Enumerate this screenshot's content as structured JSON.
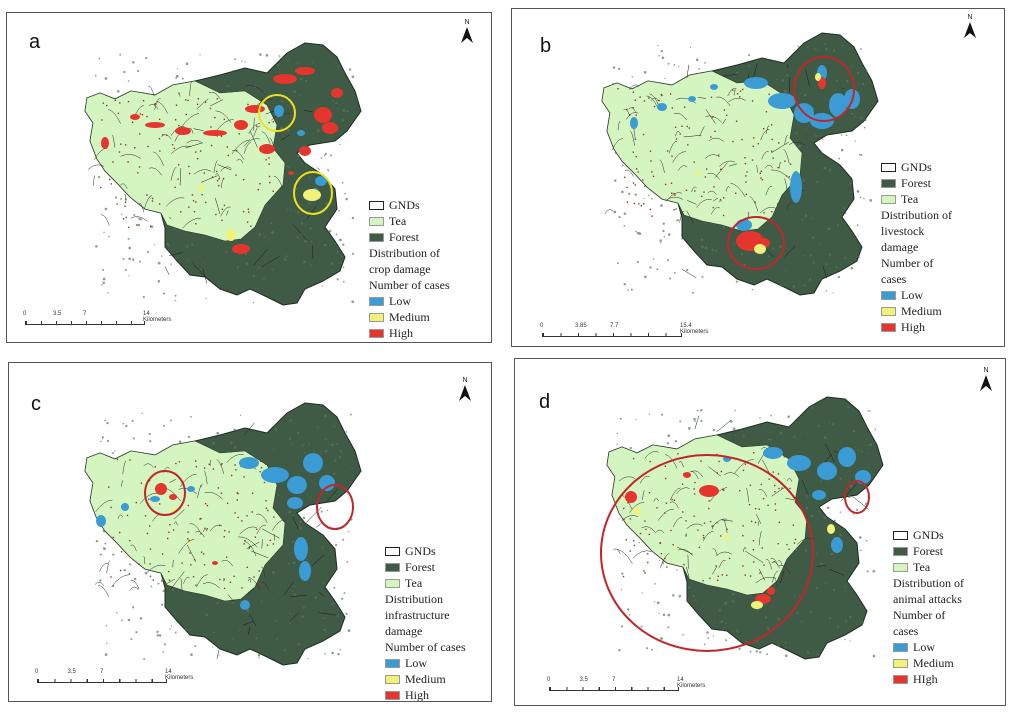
{
  "north_label": "N",
  "colors": {
    "forest": "#3f5a45",
    "tea": "#d5f5c0",
    "low": "#3a9bd5",
    "medium": "#f2f27a",
    "high": "#e5352c",
    "gnd_border": "#222222",
    "circle_yellow": "#f0e020",
    "circle_red": "#c0262a"
  },
  "panels": [
    {
      "id": "a",
      "label": "a",
      "legend": [
        "GNDs",
        "Tea",
        "Forest",
        "Distribution of crop damage",
        "Number of cases",
        "Low",
        "Medium",
        "High"
      ],
      "legend_items": [
        {
          "text": "GNDs",
          "swatch": "gnd"
        },
        {
          "text": "Tea",
          "swatch": "tea"
        },
        {
          "text": "Forest",
          "swatch": "forest"
        },
        {
          "text": "Distribution of",
          "swatch": null
        },
        {
          "text": "crop damage",
          "swatch": null
        },
        {
          "text": "Number of cases",
          "swatch": null
        },
        {
          "text": "Low",
          "swatch": "low"
        },
        {
          "text": "Medium",
          "swatch": "medium"
        },
        {
          "text": "High",
          "swatch": "high"
        }
      ],
      "scale_ticks": [
        "0",
        "3.5",
        "7",
        "14 Kilometers"
      ],
      "highlight_circles": 2,
      "circle_color": "yellow"
    },
    {
      "id": "b",
      "label": "b",
      "legend_items": [
        {
          "text": "GNDs",
          "swatch": "gnd"
        },
        {
          "text": "Forest",
          "swatch": "forest"
        },
        {
          "text": "Tea",
          "swatch": "tea"
        },
        {
          "text": "Distribution of",
          "swatch": null
        },
        {
          "text": "livestock",
          "swatch": null
        },
        {
          "text": "damage",
          "swatch": null
        },
        {
          "text": "Number of",
          "swatch": null
        },
        {
          "text": "cases",
          "swatch": null
        },
        {
          "text": "Low",
          "swatch": "low"
        },
        {
          "text": "Medium",
          "swatch": "medium"
        },
        {
          "text": "High",
          "swatch": "high"
        }
      ],
      "scale_ticks": [
        "0",
        "3.85",
        "7.7",
        "15.4 Kilometers"
      ],
      "highlight_circles": 2,
      "circle_color": "red"
    },
    {
      "id": "c",
      "label": "c",
      "legend_items": [
        {
          "text": "GNDs",
          "swatch": "gnd"
        },
        {
          "text": "Forest",
          "swatch": "forest"
        },
        {
          "text": "Tea",
          "swatch": "tea"
        },
        {
          "text": "Distribution",
          "swatch": null
        },
        {
          "text": "infrastructure",
          "swatch": null
        },
        {
          "text": "damage",
          "swatch": null
        },
        {
          "text": "Number of cases",
          "swatch": null
        },
        {
          "text": "Low",
          "swatch": "low"
        },
        {
          "text": "Medium",
          "swatch": "medium"
        },
        {
          "text": "High",
          "swatch": "high"
        }
      ],
      "scale_ticks": [
        "0",
        "3.5",
        "7",
        "14 Kilometers"
      ],
      "highlight_circles": 2,
      "circle_color": "red"
    },
    {
      "id": "d",
      "label": "d",
      "legend_items": [
        {
          "text": "GNDs",
          "swatch": "gnd"
        },
        {
          "text": "Forest",
          "swatch": "forest"
        },
        {
          "text": "Tea",
          "swatch": "tea"
        },
        {
          "text": "Distribution  of",
          "swatch": null
        },
        {
          "text": "animal attacks",
          "swatch": null
        },
        {
          "text": "Number of",
          "swatch": null
        },
        {
          "text": "cases",
          "swatch": null
        },
        {
          "text": "Low",
          "swatch": "low"
        },
        {
          "text": "Medium",
          "swatch": "medium"
        },
        {
          "text": "HIgh",
          "swatch": "high"
        }
      ],
      "scale_ticks": [
        "0",
        "3.5",
        "7",
        "14 Kilometers"
      ],
      "highlight_circles": 2,
      "circle_color": "red"
    }
  ]
}
